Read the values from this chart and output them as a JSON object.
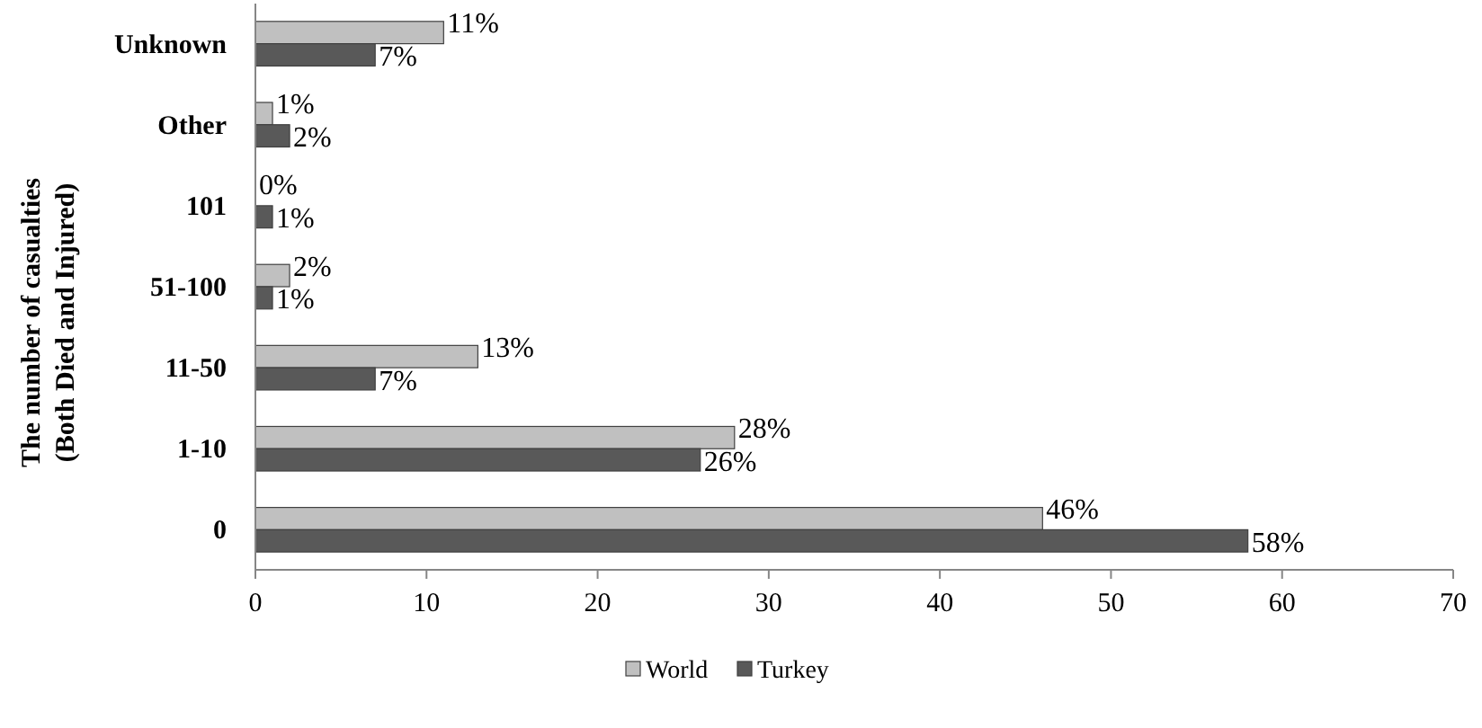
{
  "chart_data": {
    "type": "bar",
    "orientation": "horizontal",
    "ylabel": "The number of casualties\n(Both Died and Injured)",
    "categories": [
      "Unknown",
      "Other",
      "101",
      "51-100",
      "11-50",
      "1-10",
      "0"
    ],
    "series": [
      {
        "name": "World",
        "color": "#c0c0c0",
        "values": [
          11,
          1,
          0,
          2,
          13,
          28,
          46
        ],
        "value_labels": [
          "11%",
          "1%",
          "0%",
          "2%",
          "13%",
          "28%",
          "46%"
        ]
      },
      {
        "name": "Turkey",
        "color": "#595959",
        "values": [
          7,
          2,
          1,
          1,
          7,
          26,
          58
        ],
        "value_labels": [
          "7%",
          "2%",
          "1%",
          "1%",
          "7%",
          "26%",
          "58%"
        ]
      }
    ],
    "xlim": [
      0,
      70
    ],
    "xticks": [
      0,
      10,
      20,
      30,
      40,
      50,
      60,
      70
    ],
    "grid": false,
    "legend": "bottom"
  }
}
